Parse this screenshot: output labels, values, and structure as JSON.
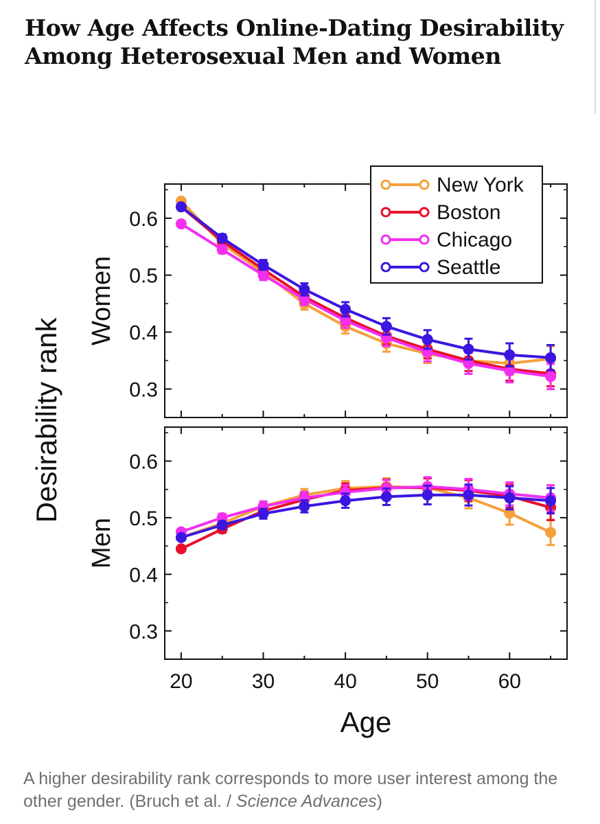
{
  "article": {
    "title_line1": "How Age Affects Online-Dating Desirability",
    "title_line2": "Among Heterosexual Men and Women",
    "caption_main": "A higher desirability rank corresponds to more user interest among the other gender. (Bruch et al. / ",
    "caption_source": "Science Advances",
    "caption_end": ")"
  },
  "chart_data": {
    "type": "line",
    "ylabel": "Desirability rank",
    "xlabel": "Age",
    "x": [
      20,
      25,
      30,
      35,
      40,
      45,
      50,
      55,
      60,
      65
    ],
    "xticks": [
      20,
      30,
      40,
      50,
      60
    ],
    "xlim": [
      18,
      67
    ],
    "yticks": [
      0.3,
      0.4,
      0.5,
      0.6
    ],
    "ylim": [
      0.25,
      0.66
    ],
    "series_colors": {
      "New York": "#f5a03c",
      "Boston": "#e8102a",
      "Chicago": "#f22ff0",
      "Seattle": "#3b16e0"
    },
    "legend": [
      "New York",
      "Boston",
      "Chicago",
      "Seattle"
    ],
    "panels": [
      {
        "label": "Women",
        "series": [
          {
            "name": "New York",
            "values": [
              0.63,
              0.555,
              0.505,
              0.45,
              0.41,
              0.38,
              0.362,
              0.35,
              0.345,
              0.353
            ]
          },
          {
            "name": "Boston",
            "values": [
              0.62,
              0.56,
              0.51,
              0.462,
              0.425,
              0.393,
              0.37,
              0.35,
              0.335,
              0.327
            ]
          },
          {
            "name": "Chicago",
            "values": [
              0.59,
              0.545,
              0.5,
              0.458,
              0.42,
              0.39,
              0.365,
              0.345,
              0.332,
              0.322
            ]
          },
          {
            "name": "Seattle",
            "values": [
              0.62,
              0.565,
              0.518,
              0.475,
              0.44,
              0.41,
              0.387,
              0.37,
              0.36,
              0.355
            ]
          }
        ]
      },
      {
        "label": "Men",
        "series": [
          {
            "name": "New York",
            "values": [
              0.465,
              0.49,
              0.52,
              0.54,
              0.552,
              0.555,
              0.553,
              0.535,
              0.508,
              0.474
            ]
          },
          {
            "name": "Boston",
            "values": [
              0.445,
              0.48,
              0.512,
              0.532,
              0.548,
              0.553,
              0.553,
              0.548,
              0.538,
              0.518
            ]
          },
          {
            "name": "Chicago",
            "values": [
              0.475,
              0.5,
              0.52,
              0.535,
              0.545,
              0.552,
              0.555,
              0.55,
              0.542,
              0.535
            ]
          },
          {
            "name": "Seattle",
            "values": [
              0.465,
              0.487,
              0.507,
              0.52,
              0.53,
              0.537,
              0.54,
              0.54,
              0.535,
              0.53
            ]
          }
        ]
      }
    ]
  }
}
